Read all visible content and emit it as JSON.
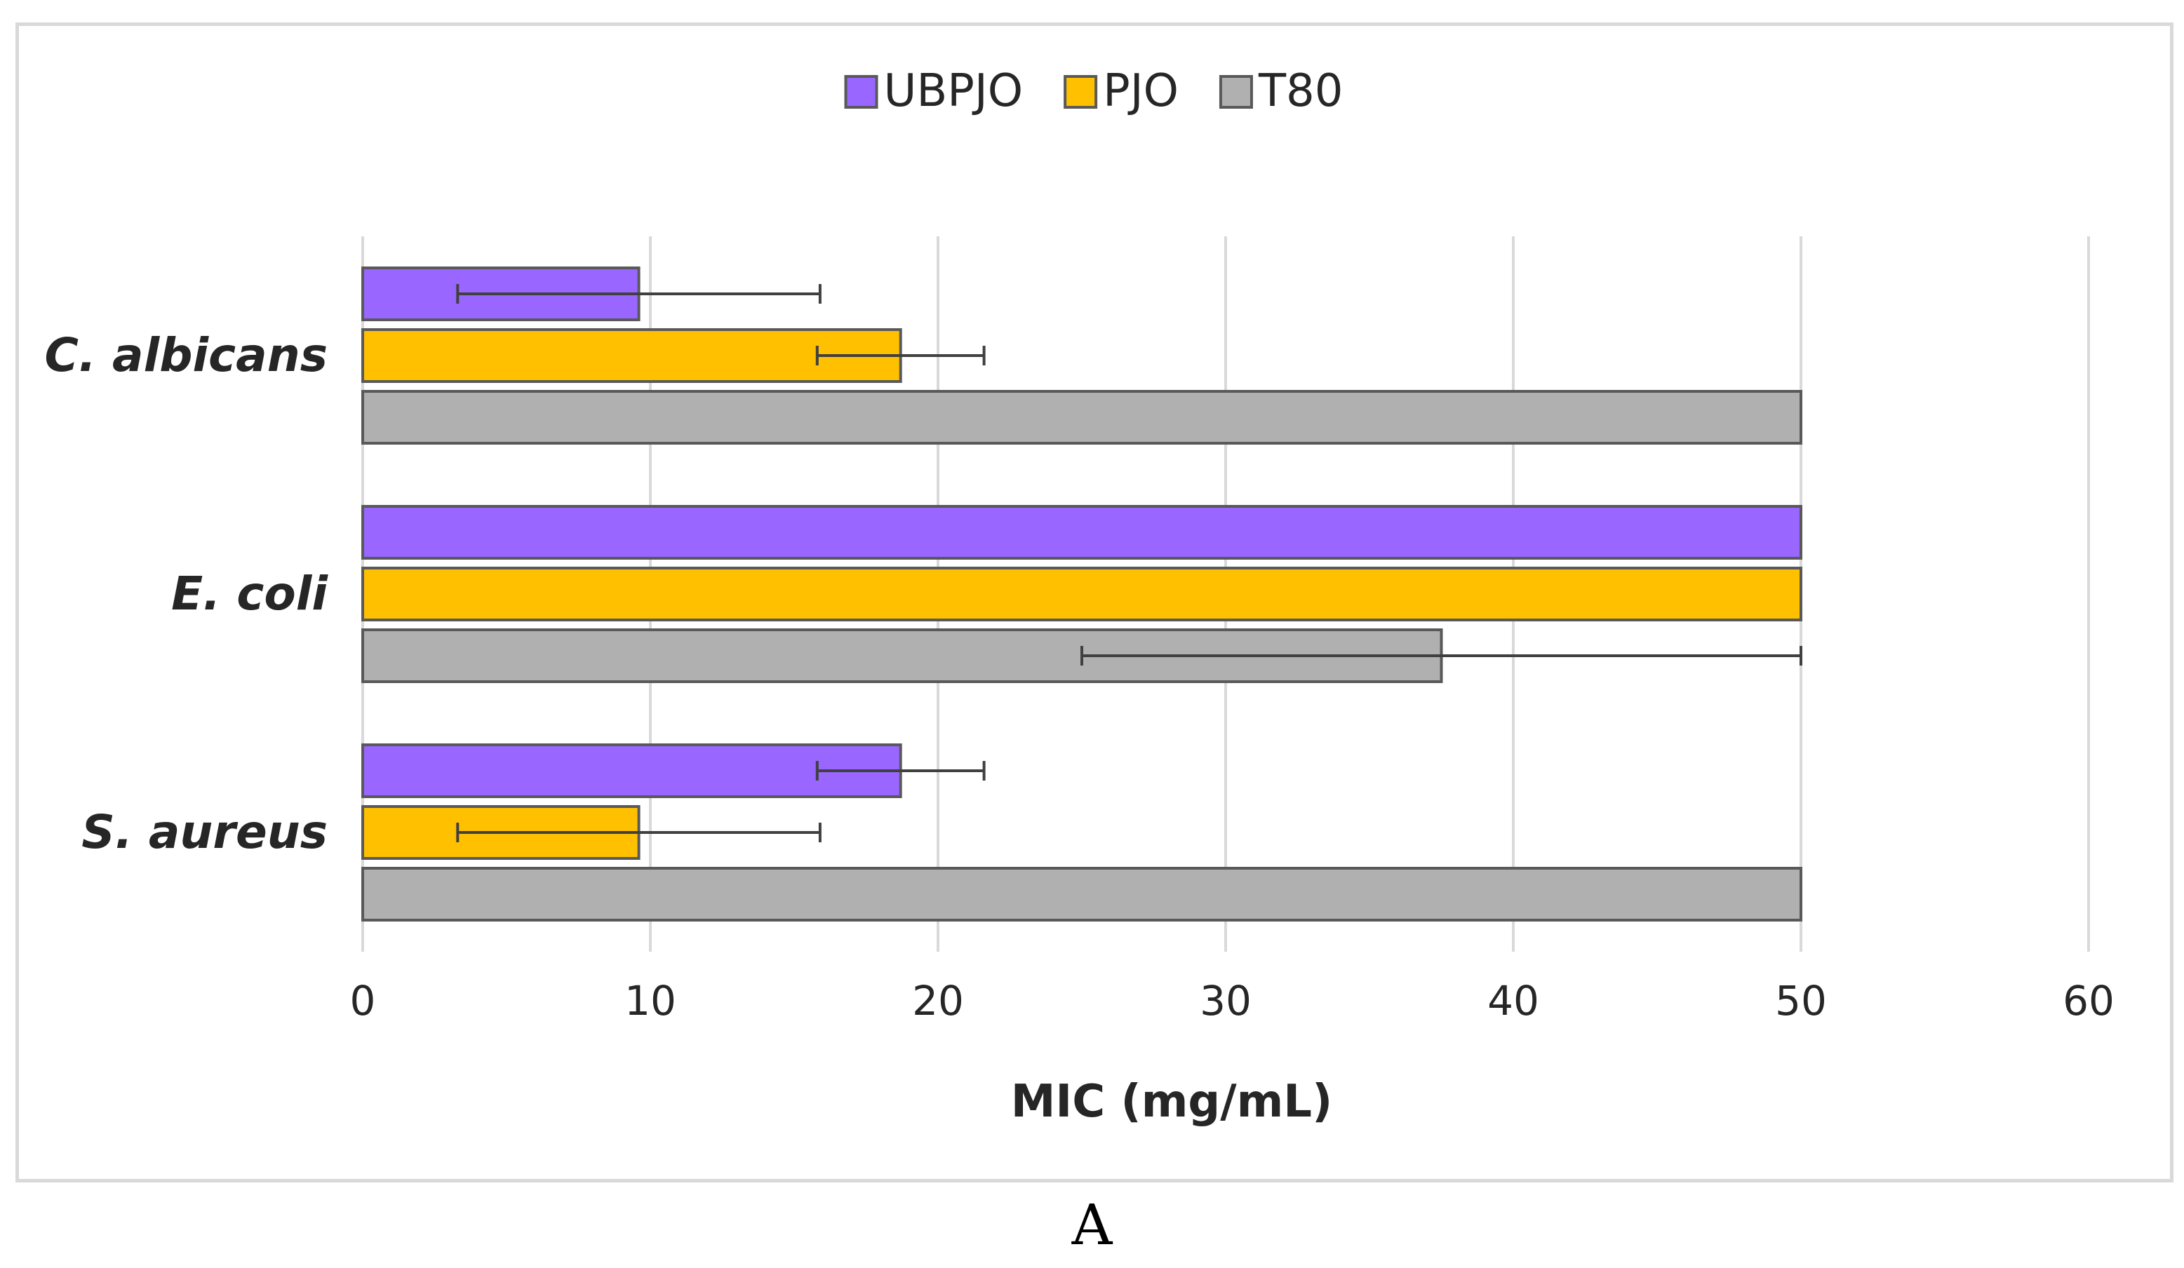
{
  "chart_data": {
    "type": "bar",
    "orientation": "horizontal",
    "categories": [
      "C. albicans",
      "E. coli",
      "S. aureus"
    ],
    "series": [
      {
        "name": "UBPJO",
        "color": "#9966ff",
        "values": [
          9.6,
          50,
          18.7
        ],
        "error": [
          6.3,
          0,
          2.9
        ]
      },
      {
        "name": "PJO",
        "color": "#ffc000",
        "values": [
          18.7,
          50,
          9.6
        ],
        "error": [
          2.9,
          0,
          6.3
        ]
      },
      {
        "name": "T80",
        "color": "#b0b0b0",
        "values": [
          50,
          37.5,
          50
        ],
        "error": [
          0,
          12.5,
          0
        ]
      }
    ],
    "xlabel": "MIC (mg/mL)",
    "xlim": [
      0,
      60
    ],
    "xticks": [
      "0",
      "10",
      "20",
      "30",
      "40",
      "50",
      "60"
    ],
    "grid": "vertical",
    "legend_position": "top-center"
  },
  "panel_label": "A"
}
